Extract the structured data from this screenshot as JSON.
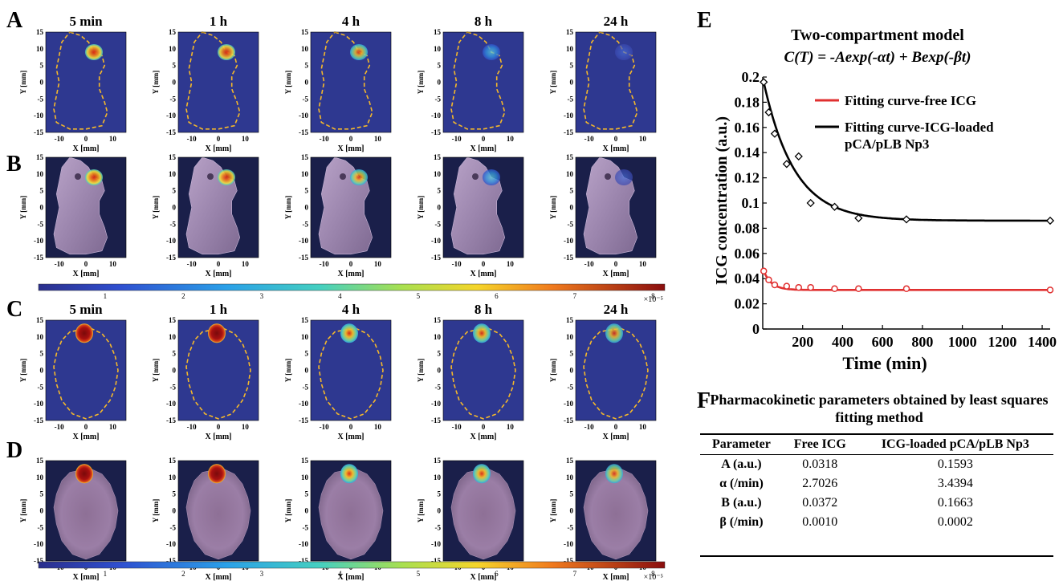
{
  "panel_labels": [
    "A",
    "B",
    "C",
    "D",
    "E",
    "F"
  ],
  "time_points": [
    "5 min",
    "1 h",
    "4 h",
    "8 h",
    "24 h"
  ],
  "map_axes": {
    "xlabel": "X [mm]",
    "ylabel": "Y [mm]",
    "xticks": [
      "-10",
      "0",
      "10"
    ],
    "yticks": [
      "15",
      "10",
      "5",
      "0",
      "-5",
      "-10",
      "-15"
    ]
  },
  "colorbar": {
    "ticks": [
      "1",
      "2",
      "3",
      "4",
      "5",
      "6",
      "7",
      "8"
    ],
    "exponent": "×10⁻⁵"
  },
  "colors": {
    "map_bg": "#2e3890",
    "outline": "#f5b82a",
    "free_icg": "#e03030",
    "loaded": "#000000"
  },
  "hotspot_intensity": {
    "row_A": [
      0.82,
      0.75,
      0.62,
      0.48,
      0.3
    ],
    "row_C": [
      1.0,
      0.98,
      0.86,
      0.8,
      0.62
    ]
  },
  "chart_data": {
    "type": "scatter",
    "title": "Two-compartment model",
    "subtitle": "C(T) = -Aexp(-αt) + Bexp(-βt)",
    "xlabel": "Time (min)",
    "ylabel": "ICG concentration (a.u.)",
    "xlim": [
      0,
      1440
    ],
    "ylim": [
      0,
      0.2
    ],
    "xticks": [
      "200",
      "400",
      "600",
      "800",
      "1000",
      "1200",
      "1400"
    ],
    "yticks": [
      "0",
      "0.02",
      "0.04",
      "0.06",
      "0.08",
      "0.1",
      "0.12",
      "0.14",
      "0.16",
      "0.18",
      "0.2"
    ],
    "legend_position": "top-right",
    "series": [
      {
        "name": "Fitting curve-free ICG",
        "color": "#e03030",
        "x": [
          5,
          30,
          60,
          120,
          180,
          240,
          360,
          480,
          720,
          1440
        ],
        "y": [
          0.046,
          0.039,
          0.035,
          0.034,
          0.033,
          0.033,
          0.032,
          0.032,
          0.032,
          0.031
        ],
        "fit": {
          "A": 0.0318,
          "alpha": 2.7026,
          "B": 0.0372,
          "beta": 0.001
        }
      },
      {
        "name": "Fitting curve-ICG-loaded pCA/pLB Np3",
        "color": "#000000",
        "x": [
          5,
          30,
          60,
          120,
          180,
          240,
          360,
          480,
          720,
          1440
        ],
        "y": [
          0.196,
          0.172,
          0.155,
          0.131,
          0.137,
          0.1,
          0.097,
          0.088,
          0.087,
          0.086
        ],
        "fit": {
          "A": 0.1593,
          "alpha": 3.4394,
          "B": 0.1663,
          "beta": 0.0002
        }
      }
    ]
  },
  "table": {
    "title": "Pharmacokinetic parameters obtained by least squares fitting method",
    "headers": [
      "Parameter",
      "Free ICG",
      "ICG-loaded pCA/pLB Np3"
    ],
    "rows": [
      [
        "A (a.u.)",
        "0.0318",
        "0.1593"
      ],
      [
        "α (/min)",
        "2.7026",
        "3.4394"
      ],
      [
        "B (a.u.)",
        "0.0372",
        "0.1663"
      ],
      [
        "β (/min)",
        "0.0010",
        "0.0002"
      ]
    ]
  }
}
